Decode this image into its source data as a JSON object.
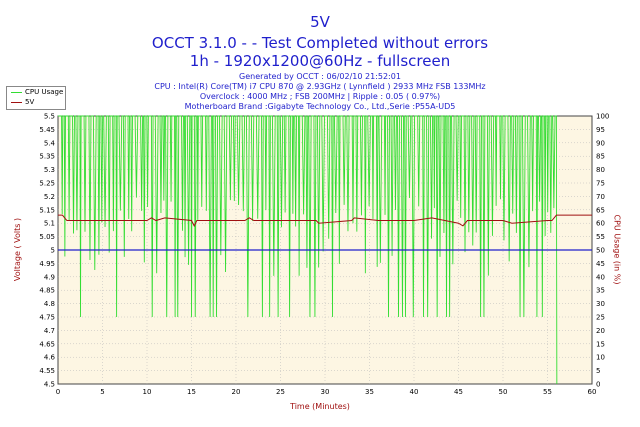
{
  "header": {
    "title": "5V",
    "subtitle1": "OCCT 3.1.0 -  - Test Completed without errors",
    "subtitle2": "1h - 1920x1200@60Hz - fullscreen",
    "info": [
      "Generated by OCCT : 06/02/10 21:52:01",
      "CPU : Intel(R) Core(TM) i7 CPU 870 @ 2.93GHz ( Lynnfield ) 2933 MHz FSB 133MHz",
      "Overclock : 4000 MHz ; FSB 200MHz | Ripple : 0.05 ( 0.97%)",
      "Motherboard Brand :Gigabyte Technology Co., Ltd.,Serie :P55A-UD5"
    ]
  },
  "chart_data": {
    "type": "line",
    "xlabel": "Time (Minutes)",
    "ylabel": "Voltage ( Volts )",
    "y2label": "CPU Usage (in %)",
    "xlim": [
      0,
      60
    ],
    "ylim": [
      4.5,
      5.5
    ],
    "y2lim": [
      0,
      100
    ],
    "x_ticks": [
      0,
      5,
      10,
      15,
      20,
      25,
      30,
      35,
      40,
      45,
      50,
      55,
      60
    ],
    "y_ticks": [
      4.5,
      4.55,
      4.6,
      4.65,
      4.7,
      4.75,
      4.8,
      4.85,
      4.9,
      4.95,
      5,
      5.05,
      5.1,
      5.15,
      5.2,
      5.25,
      5.3,
      5.35,
      5.4,
      5.45,
      5.5
    ],
    "y2_ticks": [
      0,
      5,
      10,
      15,
      20,
      25,
      30,
      35,
      40,
      45,
      50,
      55,
      60,
      65,
      70,
      75,
      80,
      85,
      90,
      95,
      100
    ],
    "grid": true,
    "legend_position": "top-left",
    "colors": {
      "cpu": "#33dd33",
      "voltage": "#a01010",
      "reference": "#2020cc",
      "plot_bg": "#fdf6e3",
      "grid": "#b8b8b8"
    },
    "series": [
      {
        "name": "CPU Usage",
        "axis": "right",
        "description_values": "oscillates 100% peaks and ~50-70% dips with periodic drops to ~25%",
        "x": [
          0,
          0.5,
          56,
          56.05
        ],
        "y": [
          100,
          100,
          100,
          0
        ]
      },
      {
        "name": "5V",
        "axis": "left",
        "x": [
          0,
          0.5,
          1,
          10,
          10.5,
          11,
          12,
          15,
          15.3,
          15.6,
          21,
          21.5,
          22,
          29,
          29.3,
          33,
          33.3,
          36,
          40,
          42,
          45,
          45.5,
          46,
          50,
          51,
          55,
          55.5,
          56,
          60
        ],
        "y": [
          5.13,
          5.13,
          5.11,
          5.11,
          5.12,
          5.11,
          5.12,
          5.11,
          5.09,
          5.11,
          5.11,
          5.12,
          5.11,
          5.11,
          5.1,
          5.11,
          5.12,
          5.11,
          5.11,
          5.12,
          5.1,
          5.09,
          5.11,
          5.11,
          5.1,
          5.11,
          5.11,
          5.13,
          5.13
        ]
      }
    ],
    "reference_line": {
      "value": 5.0
    }
  }
}
